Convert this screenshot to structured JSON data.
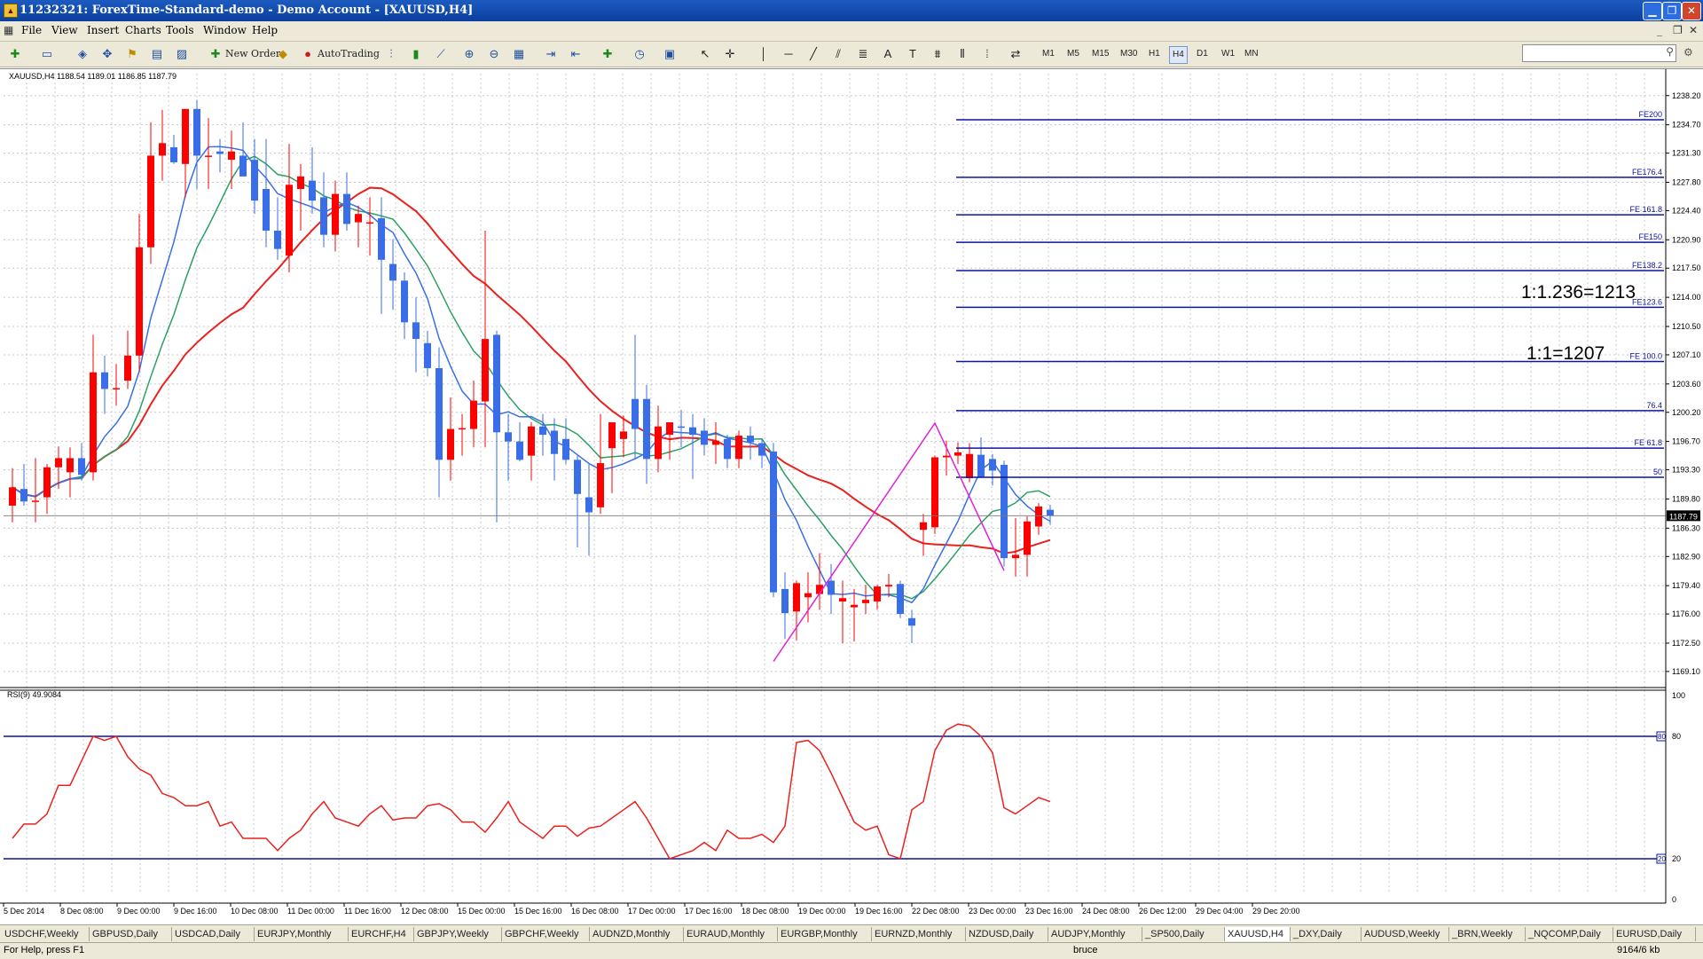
{
  "window": {
    "title": "11232321: ForexTime-Standard-demo - Demo Account - [XAUUSD,H4]",
    "app_icon": "mt4-icon",
    "buttons": [
      "minimize",
      "restore",
      "close"
    ]
  },
  "menu": [
    "File",
    "View",
    "Insert",
    "Charts",
    "Tools",
    "Window",
    "Help"
  ],
  "toolbar": {
    "new_order": "New Order",
    "autotrading": "AutoTrading",
    "timeframes": [
      "M1",
      "M5",
      "M15",
      "M30",
      "H1",
      "H4",
      "D1",
      "W1",
      "MN"
    ],
    "active_timeframe": "H4"
  },
  "chart": {
    "header": "XAUUSD,H4  1188.54 1189.01 1186.85 1187.79",
    "current_price": "1187.79",
    "price_ticks": [
      "1238.20",
      "1234.70",
      "1231.30",
      "1227.80",
      "1224.40",
      "1220.90",
      "1217.50",
      "1214.00",
      "1210.50",
      "1207.10",
      "1203.60",
      "1200.20",
      "1196.70",
      "1193.30",
      "1189.80",
      "1186.30",
      "1182.90",
      "1179.40",
      "1176.00",
      "1172.50",
      "1169.10"
    ],
    "fib_labels": [
      "FE200",
      "FE176.4",
      "FE 161.8",
      "FE150",
      "FE138.2",
      "FE123.6",
      "FE 100.0",
      "76.4",
      "FE 61.8",
      "50"
    ],
    "annotations": [
      "1:1.236=1213",
      "1:1=1207"
    ],
    "rsi_header": "RSI(9) 49.9084",
    "rsi_ticks": [
      "100",
      "80",
      "20",
      "0"
    ],
    "rsi_levels_label": [
      "80",
      "20"
    ],
    "time_labels": [
      "5 Dec 2014",
      "8 Dec 08:00",
      "9 Dec 00:00",
      "9 Dec 16:00",
      "10 Dec 08:00",
      "11 Dec 00:00",
      "11 Dec 16:00",
      "12 Dec 08:00",
      "15 Dec 00:00",
      "15 Dec 16:00",
      "16 Dec 08:00",
      "17 Dec 00:00",
      "17 Dec 16:00",
      "18 Dec 08:00",
      "19 Dec 00:00",
      "19 Dec 16:00",
      "22 Dec 08:00",
      "23 Dec 00:00",
      "23 Dec 16:00",
      "24 Dec 08:00",
      "26 Dec 12:00",
      "29 Dec 04:00",
      "29 Dec 20:00"
    ],
    "colors": {
      "bull": "#ff0000",
      "bear": "#3a6ee8",
      "ma_blue": "#3a6ee8",
      "ma_green": "#2aa064",
      "ma_red": "#e8221e",
      "fib": "#0c14a0",
      "zigzag": "#e020d8",
      "rsi": "#e8221e"
    }
  },
  "tabs": [
    "USDCHF,Weekly",
    "GBPUSD,Daily",
    "USDCAD,Daily",
    "EURJPY,Monthly",
    "EURCHF,H4",
    "GBPJPY,Weekly",
    "GBPCHF,Weekly",
    "AUDNZD,Monthly",
    "EURAUD,Monthly",
    "EURGBP,Monthly",
    "EURNZD,Monthly",
    "NZDUSD,Daily",
    "AUDJPY,Monthly",
    "_SP500,Daily",
    "XAUUSD,H4",
    "_DXY,Daily",
    "AUDUSD,Weekly",
    "_BRN,Weekly",
    "_NQCOMP,Daily",
    "EURUSD,Daily"
  ],
  "status": {
    "help": "For Help, press F1",
    "profile": "bruce",
    "traffic": "9164/6 kb"
  }
}
